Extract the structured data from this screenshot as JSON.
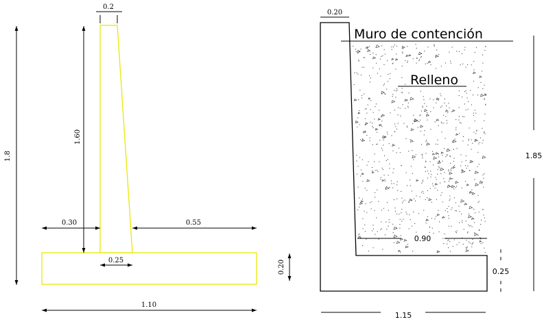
{
  "left_figure": {
    "dims": {
      "stem_top_width": "0.2",
      "stem_height": "1.60",
      "total_height": "1.8",
      "toe_width": "0.30",
      "heel_width": "0.55",
      "stem_base_width": "0.25",
      "footing_thickness": "0.20",
      "footing_width": "1.10"
    },
    "wall_color": "#e8e800"
  },
  "right_figure": {
    "title_wall": "Muro de contención",
    "title_fill": "Relleno",
    "dims": {
      "top_width": "0.20",
      "total_height": "1.85",
      "heel_width": "0.90",
      "footing_thickness": "0.25",
      "base_width": "1.15"
    }
  }
}
